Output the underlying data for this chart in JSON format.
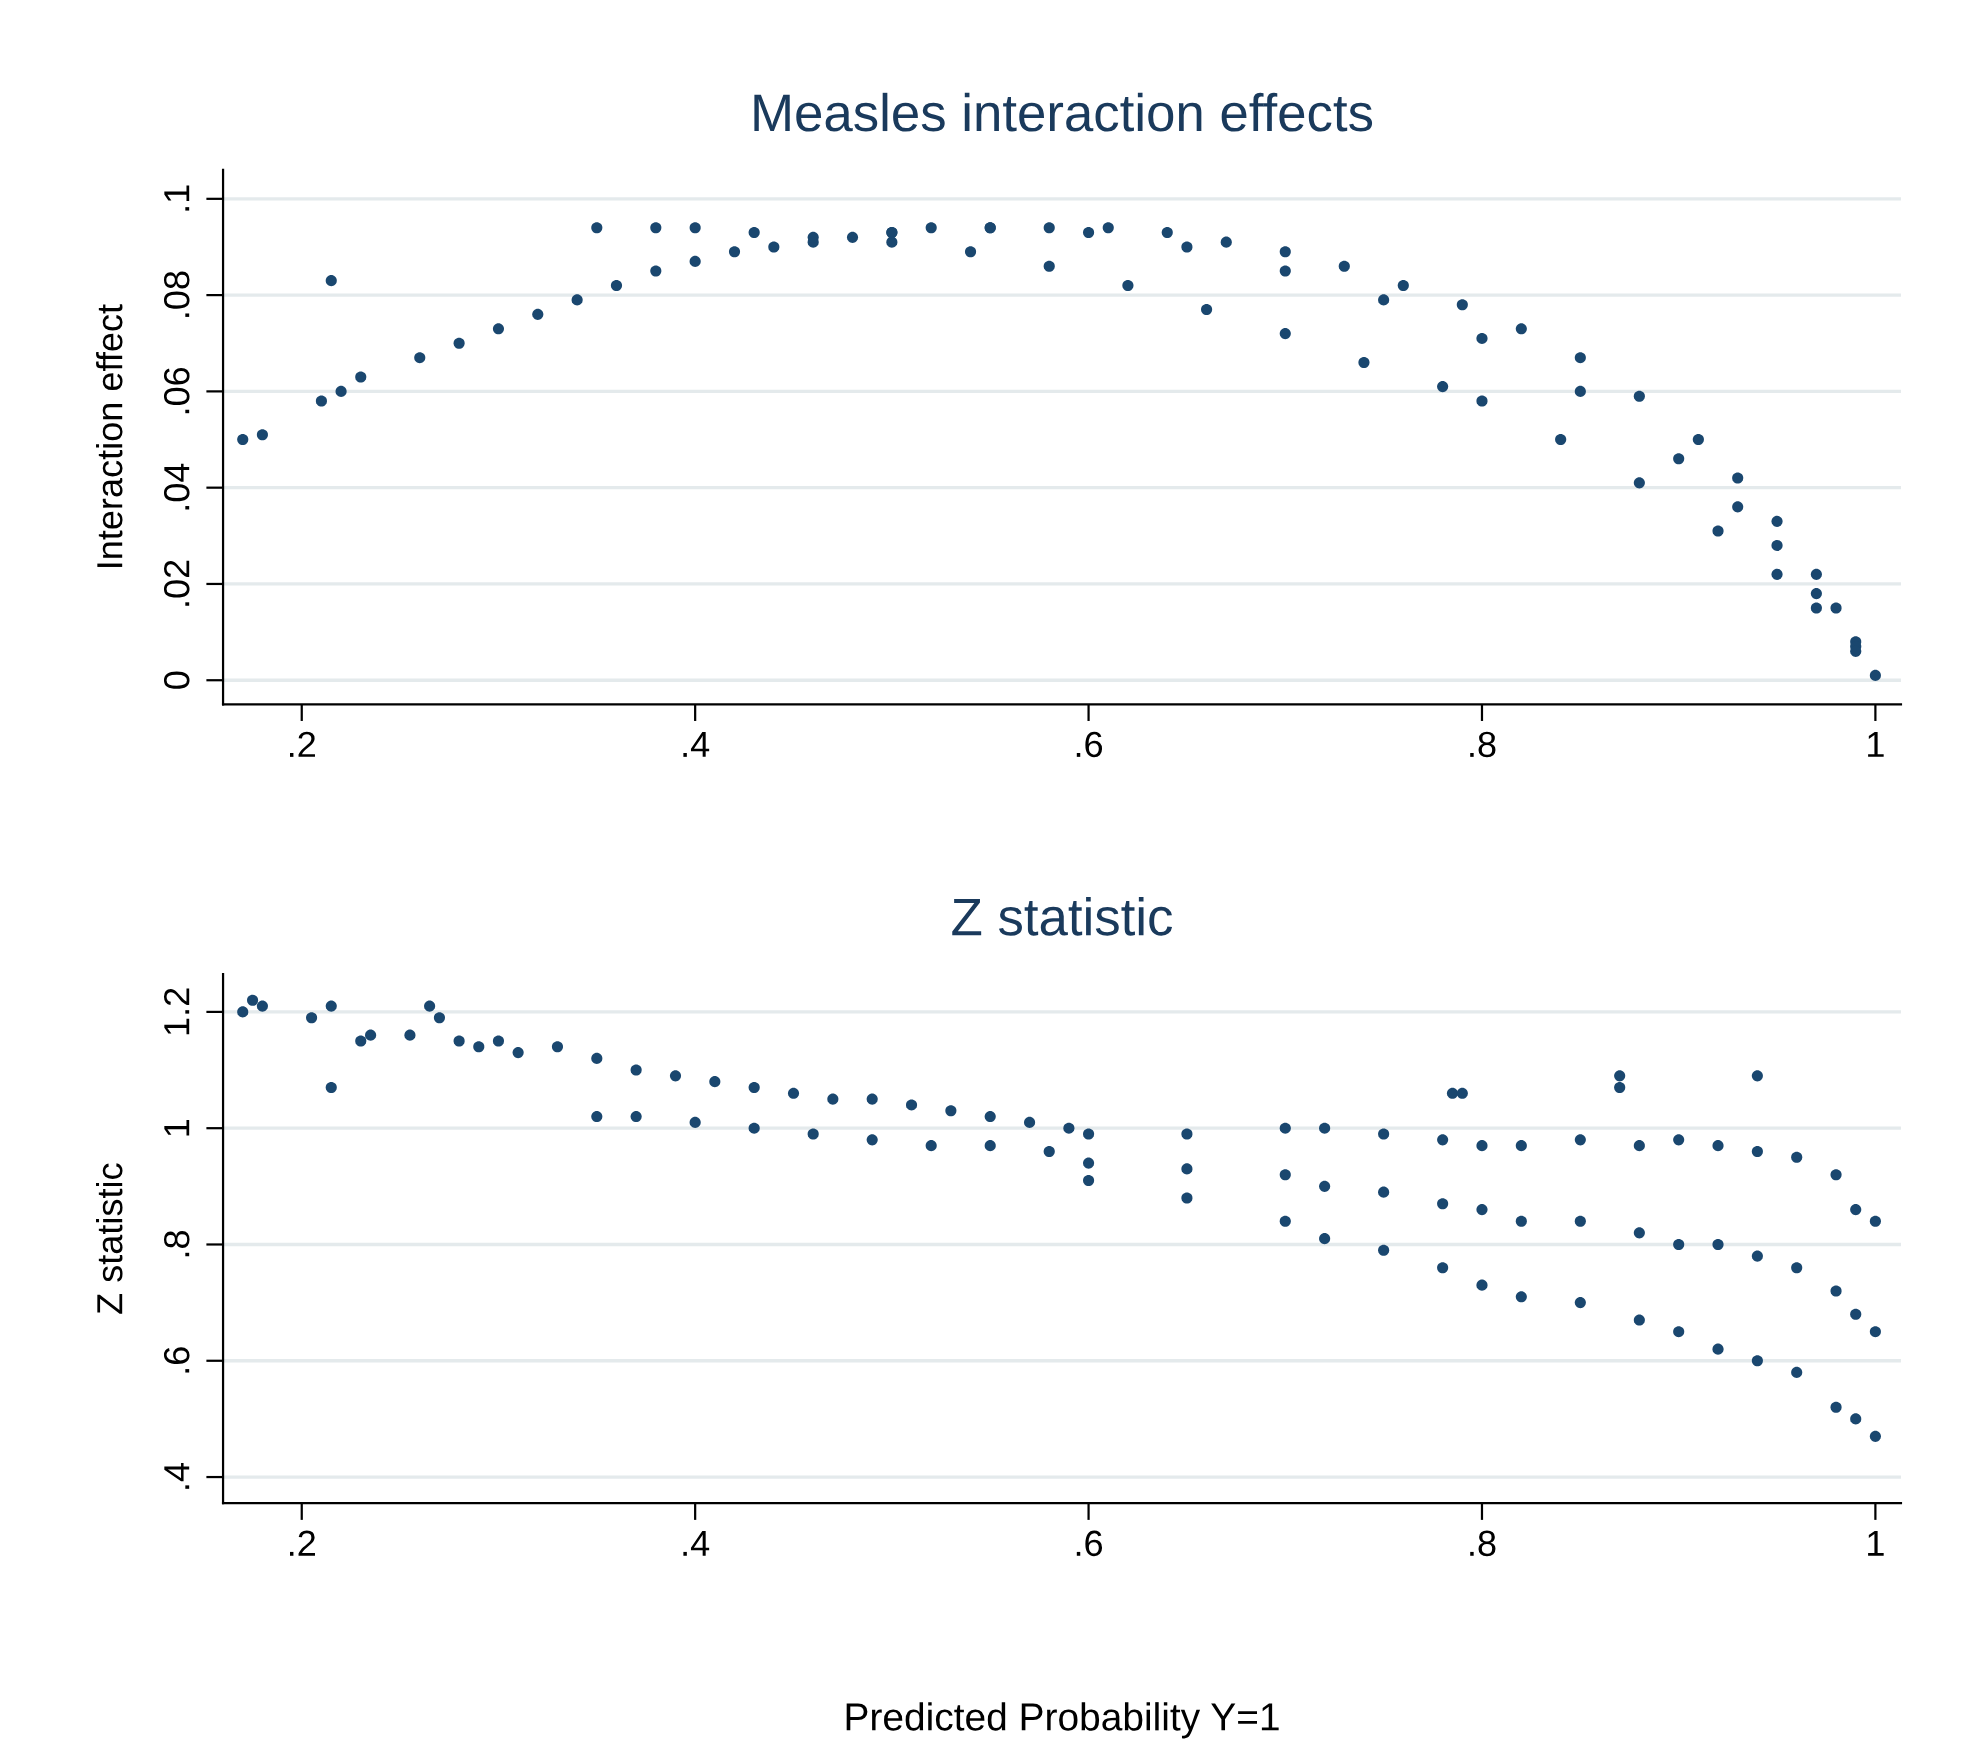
{
  "chart_data": [
    {
      "type": "scatter",
      "title": "Measles interaction effects",
      "ylabel": "Interaction effect",
      "grid": "y",
      "marker": "circle",
      "xlim": [
        0.16,
        1.013
      ],
      "ylim": [
        -0.005,
        0.106
      ],
      "xticks": [
        {
          "value": 0.2,
          "label": ".2"
        },
        {
          "value": 0.4,
          "label": ".4"
        },
        {
          "value": 0.6,
          "label": ".6"
        },
        {
          "value": 0.8,
          "label": ".8"
        },
        1
      ],
      "yticks": [
        0,
        {
          "value": 0.02,
          "label": ".02"
        },
        {
          "value": 0.04,
          "label": ".04"
        },
        {
          "value": 0.06,
          "label": ".06"
        },
        {
          "value": 0.08,
          "label": ".08"
        },
        {
          "value": 0.1,
          "label": ".1"
        }
      ],
      "series": [
        {
          "color": "#1a476f",
          "x": [
            0.17,
            0.18,
            0.21,
            0.215,
            0.22,
            0.23,
            0.26,
            0.28,
            0.3,
            0.32,
            0.34,
            0.36,
            0.38,
            0.4,
            0.42,
            0.44,
            0.46,
            0.48,
            0.5,
            0.52,
            0.55,
            0.58,
            0.61,
            0.64,
            0.67,
            0.7,
            0.73,
            0.76,
            0.79,
            0.82,
            0.85,
            0.88,
            0.91,
            0.93,
            0.95,
            0.97,
            0.98,
            0.99,
            1.0,
            0.5,
            0.55,
            0.6,
            0.65,
            0.7,
            0.75,
            0.8,
            0.85,
            0.9,
            0.93,
            0.95,
            0.97,
            0.99,
            0.35,
            0.38,
            0.4,
            0.43,
            0.46,
            0.5,
            0.54,
            0.58,
            0.62,
            0.66,
            0.7,
            0.74,
            0.78,
            0.8,
            0.84,
            0.88,
            0.92,
            0.95,
            0.97,
            0.99
          ],
          "values": [
            0.05,
            0.051,
            0.058,
            0.083,
            0.06,
            0.063,
            0.067,
            0.07,
            0.073,
            0.076,
            0.079,
            0.082,
            0.085,
            0.087,
            0.089,
            0.09,
            0.091,
            0.092,
            0.093,
            0.094,
            0.094,
            0.094,
            0.094,
            0.093,
            0.091,
            0.089,
            0.086,
            0.082,
            0.078,
            0.073,
            0.067,
            0.059,
            0.05,
            0.042,
            0.033,
            0.022,
            0.015,
            0.008,
            0.001,
            0.093,
            0.094,
            0.093,
            0.09,
            0.085,
            0.079,
            0.071,
            0.06,
            0.046,
            0.036,
            0.028,
            0.018,
            0.007,
            0.094,
            0.094,
            0.094,
            0.093,
            0.092,
            0.091,
            0.089,
            0.086,
            0.082,
            0.077,
            0.072,
            0.066,
            0.061,
            0.058,
            0.05,
            0.041,
            0.031,
            0.022,
            0.015,
            0.006
          ]
        }
      ]
    },
    {
      "type": "scatter",
      "title": "Z statistic",
      "ylabel": "Z statistic",
      "xlabel": "Predicted Probability Y=1",
      "grid": "y",
      "marker": "circle",
      "xlim": [
        0.16,
        1.013
      ],
      "ylim": [
        0.355,
        1.265
      ],
      "xticks": [
        {
          "value": 0.2,
          "label": ".2"
        },
        {
          "value": 0.4,
          "label": ".4"
        },
        {
          "value": 0.6,
          "label": ".6"
        },
        {
          "value": 0.8,
          "label": ".8"
        },
        1
      ],
      "yticks": [
        {
          "value": 0.4,
          "label": ".4"
        },
        {
          "value": 0.6,
          "label": ".6"
        },
        {
          "value": 0.8,
          "label": ".8"
        },
        1,
        1.2
      ],
      "series": [
        {
          "color": "#1a476f",
          "x": [
            0.17,
            0.175,
            0.18,
            0.205,
            0.215,
            0.215,
            0.23,
            0.235,
            0.255,
            0.265,
            0.27,
            0.28,
            0.29,
            0.3,
            0.31,
            0.33,
            0.35,
            0.37,
            0.39,
            0.41,
            0.43,
            0.45,
            0.47,
            0.49,
            0.51,
            0.53,
            0.55,
            0.57,
            0.59,
            0.35,
            0.37,
            0.4,
            0.43,
            0.46,
            0.49,
            0.52,
            0.55,
            0.58,
            0.6,
            0.6,
            0.6,
            0.65,
            0.65,
            0.65,
            0.7,
            0.7,
            0.7,
            0.72,
            0.72,
            0.72,
            0.75,
            0.75,
            0.75,
            0.78,
            0.78,
            0.78,
            0.8,
            0.8,
            0.8,
            0.82,
            0.82,
            0.82,
            0.85,
            0.85,
            0.85,
            0.88,
            0.88,
            0.88,
            0.9,
            0.9,
            0.9,
            0.92,
            0.92,
            0.92,
            0.94,
            0.94,
            0.94,
            0.96,
            0.96,
            0.96,
            0.98,
            0.98,
            0.98,
            0.99,
            0.99,
            0.99,
            1.0,
            1.0,
            1.0,
            0.785,
            0.79,
            0.87,
            0.87,
            0.94
          ],
          "values": [
            1.2,
            1.22,
            1.21,
            1.19,
            1.21,
            1.07,
            1.15,
            1.16,
            1.16,
            1.21,
            1.19,
            1.15,
            1.14,
            1.15,
            1.13,
            1.14,
            1.12,
            1.1,
            1.09,
            1.08,
            1.07,
            1.06,
            1.05,
            1.05,
            1.04,
            1.03,
            1.02,
            1.01,
            1.0,
            1.02,
            1.02,
            1.01,
            1.0,
            0.99,
            0.98,
            0.97,
            0.97,
            0.96,
            0.99,
            0.94,
            0.91,
            0.99,
            0.93,
            0.88,
            1.0,
            0.92,
            0.84,
            1.0,
            0.9,
            0.81,
            0.99,
            0.89,
            0.79,
            0.98,
            0.87,
            0.76,
            0.97,
            0.86,
            0.73,
            0.97,
            0.84,
            0.71,
            0.98,
            0.84,
            0.7,
            0.97,
            0.82,
            0.67,
            0.98,
            0.8,
            0.65,
            0.97,
            0.8,
            0.62,
            0.96,
            0.78,
            0.6,
            0.95,
            0.76,
            0.58,
            0.92,
            0.72,
            0.52,
            0.86,
            0.68,
            0.5,
            0.84,
            0.65,
            0.47,
            1.06,
            1.06,
            1.09,
            1.07,
            1.09
          ]
        }
      ]
    }
  ]
}
